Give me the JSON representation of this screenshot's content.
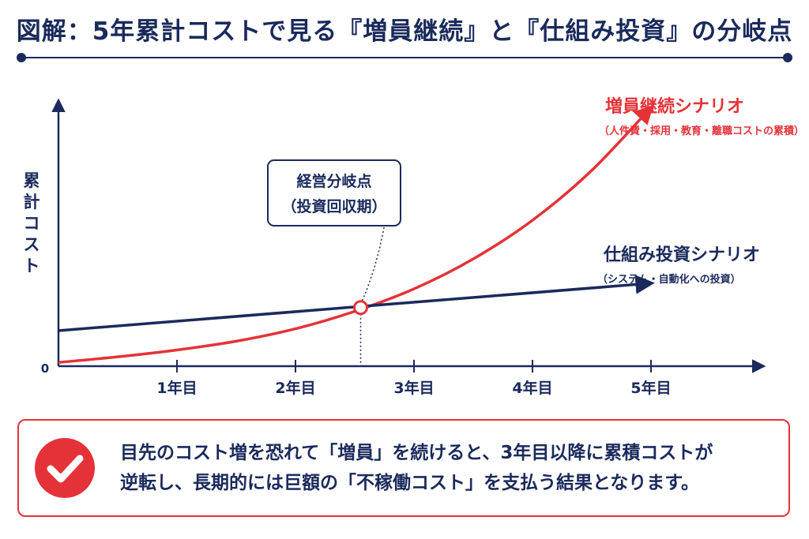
{
  "title": "図解：5年累計コストで見る『増員継続』と『仕組み投資』の分岐点",
  "colors": {
    "navy": "#1a2a5c",
    "red": "#e53238"
  },
  "chart_data": {
    "type": "line",
    "ylabel": "累計コスト",
    "origin_label": "0",
    "x_ticks": [
      "1年目",
      "2年目",
      "3年目",
      "4年目",
      "5年目"
    ],
    "xlim": [
      0,
      6
    ],
    "series": [
      {
        "name": "増員継続シナリオ",
        "subtitle": "（人件費・採用・教育・離職コストの累積）",
        "color": "#e53238",
        "x": [
          0,
          0.5,
          1,
          1.5,
          2,
          2.5,
          3,
          3.5,
          4,
          4.5,
          5
        ],
        "y": [
          0.6,
          1.5,
          2.6,
          4.0,
          6.0,
          8.8,
          12.4,
          17.2,
          23.4,
          31.4,
          41.5
        ]
      },
      {
        "name": "仕組み投資シナリオ",
        "subtitle": "（システム・自動化への投資）",
        "color": "#1a2a5c",
        "x": [
          0,
          5
        ],
        "y": [
          5.7,
          13.3
        ]
      }
    ],
    "annotation": {
      "label_line1": "経営分岐点",
      "label_line2": "（投資回収期）",
      "x": 2.55,
      "y": 9.4
    }
  },
  "callout": {
    "icon": "check-icon",
    "line1": "目先のコスト増を恐れて「増員」を続けると、3年目以降に累積コストが",
    "line2": "逆転し、長期的には巨額の「不稼働コスト」を支払う結果となります。"
  }
}
